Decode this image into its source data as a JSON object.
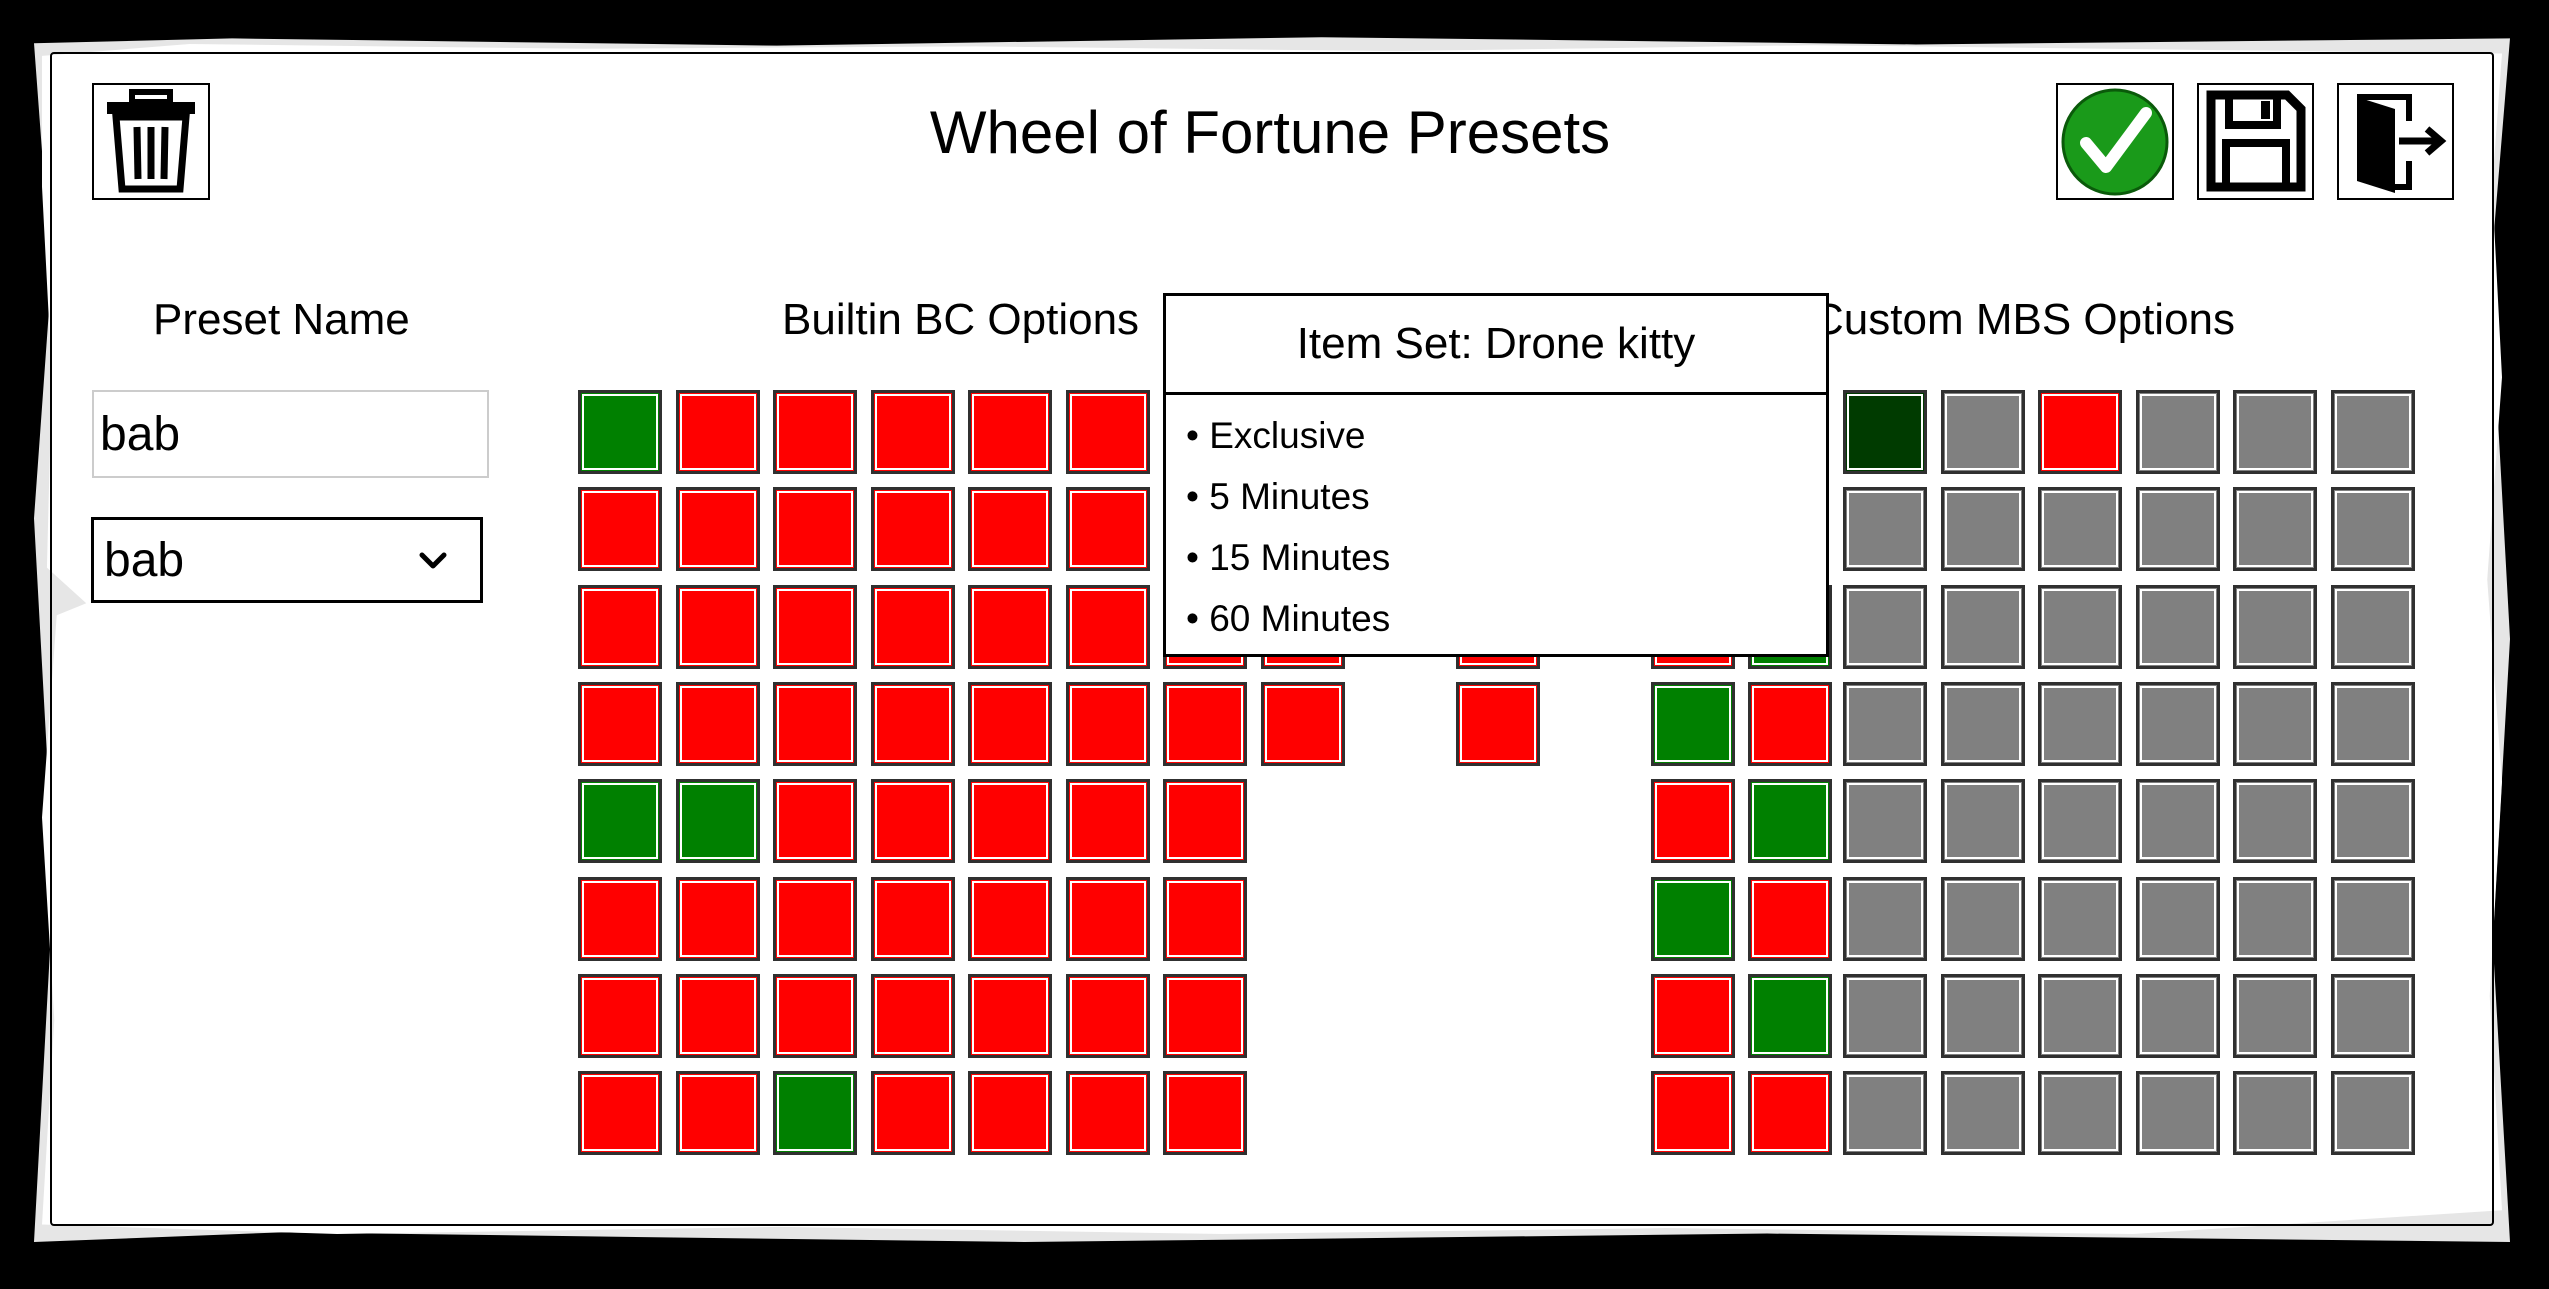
{
  "title": "Wheel of Fortune Presets",
  "labels": {
    "preset_name": "Preset Name",
    "builtin": "Builtin BC Options",
    "custom": "Custom MBS Options"
  },
  "preset_name_value": "bab",
  "preset_select_value": "bab",
  "icons": {
    "delete": "trash-icon",
    "accept": "checkmark-icon",
    "save": "floppy-disk-icon",
    "exit": "exit-door-icon"
  },
  "colors": {
    "on": "#008000",
    "off": "#ff0000",
    "dark_on": "#003b00",
    "disabled": "#808080"
  },
  "tooltip": {
    "title": "Item Set: Drone kitty",
    "items": [
      "• Exclusive",
      "• 5 Minutes",
      "• 15 Minutes",
      "• 60 Minutes"
    ]
  },
  "builtin_grid": [
    [
      "G",
      "R",
      "R",
      "R",
      "R",
      "R",
      "-",
      "-",
      "-",
      "-",
      "-",
      "-"
    ],
    [
      "R",
      "R",
      "R",
      "R",
      "R",
      "R",
      "-",
      "-",
      "-",
      "-",
      "-",
      "-"
    ],
    [
      "R",
      "R",
      "R",
      "R",
      "R",
      "R",
      "R",
      "R",
      "-",
      "R",
      "-",
      "R",
      "G"
    ],
    [
      "R",
      "R",
      "R",
      "R",
      "R",
      "R",
      "R",
      "R",
      "-",
      "R",
      "-",
      "G",
      "R"
    ],
    [
      "G",
      "G",
      "R",
      "R",
      "R",
      "R",
      "R",
      "-",
      "-",
      "-",
      "-",
      "R",
      "G"
    ],
    [
      "R",
      "R",
      "R",
      "R",
      "R",
      "R",
      "R",
      "-",
      "-",
      "-",
      "-",
      "G",
      "R"
    ],
    [
      "R",
      "R",
      "R",
      "R",
      "R",
      "R",
      "R",
      "-",
      "-",
      "-",
      "-",
      "R",
      "G"
    ],
    [
      "R",
      "R",
      "G",
      "R",
      "R",
      "R",
      "R",
      "-",
      "-",
      "-",
      "-",
      "R",
      "R"
    ]
  ],
  "custom_grid": [
    [
      "D",
      "X",
      "R",
      "X",
      "X",
      "X"
    ],
    [
      "X",
      "X",
      "X",
      "X",
      "X",
      "X"
    ],
    [
      "X",
      "X",
      "X",
      "X",
      "X",
      "X"
    ],
    [
      "X",
      "X",
      "X",
      "X",
      "X",
      "X"
    ],
    [
      "X",
      "X",
      "X",
      "X",
      "X",
      "X"
    ],
    [
      "X",
      "X",
      "X",
      "X",
      "X",
      "X"
    ],
    [
      "X",
      "X",
      "X",
      "X",
      "X",
      "X"
    ],
    [
      "X",
      "X",
      "X",
      "X",
      "X",
      "X"
    ]
  ]
}
